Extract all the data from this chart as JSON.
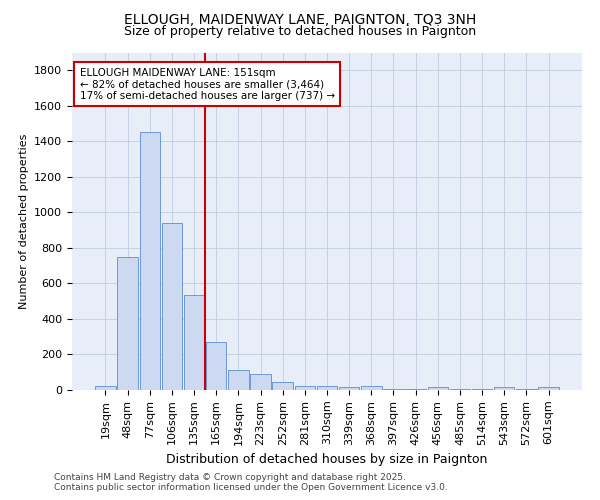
{
  "title": "ELLOUGH, MAIDENWAY LANE, PAIGNTON, TQ3 3NH",
  "subtitle": "Size of property relative to detached houses in Paignton",
  "xlabel": "Distribution of detached houses by size in Paignton",
  "ylabel": "Number of detached properties",
  "bar_labels": [
    "19sqm",
    "48sqm",
    "77sqm",
    "106sqm",
    "135sqm",
    "165sqm",
    "194sqm",
    "223sqm",
    "252sqm",
    "281sqm",
    "310sqm",
    "339sqm",
    "368sqm",
    "397sqm",
    "426sqm",
    "456sqm",
    "485sqm",
    "514sqm",
    "543sqm",
    "572sqm",
    "601sqm"
  ],
  "bar_values": [
    20,
    750,
    1450,
    940,
    535,
    270,
    110,
    90,
    45,
    25,
    20,
    15,
    20,
    5,
    5,
    15,
    5,
    5,
    15,
    5,
    15
  ],
  "bar_color": "#cdd9f0",
  "bar_edge_color": "#5b8ed6",
  "vline_color": "#cc0000",
  "annotation_title": "ELLOUGH MAIDENWAY LANE: 151sqm",
  "annotation_line1": "← 82% of detached houses are smaller (3,464)",
  "annotation_line2": "17% of semi-detached houses are larger (737) →",
  "annotation_box_color": "#ffffff",
  "annotation_box_edge": "#cc0000",
  "footer_line1": "Contains HM Land Registry data © Crown copyright and database right 2025.",
  "footer_line2": "Contains public sector information licensed under the Open Government Licence v3.0.",
  "plot_bg_color": "#e8eef8",
  "fig_bg_color": "#ffffff",
  "grid_color": "#c0cce0",
  "ylim": [
    0,
    1900
  ],
  "yticks": [
    0,
    200,
    400,
    600,
    800,
    1000,
    1200,
    1400,
    1600,
    1800
  ],
  "title_fontsize": 10,
  "subtitle_fontsize": 9,
  "xlabel_fontsize": 9,
  "ylabel_fontsize": 8,
  "tick_fontsize": 8,
  "annotation_fontsize": 7.5,
  "footer_fontsize": 6.5
}
